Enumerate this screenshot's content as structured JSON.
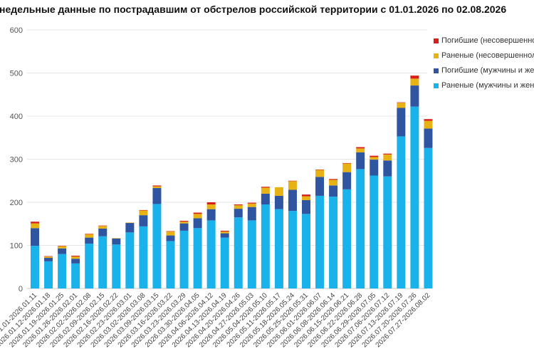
{
  "chart_data": {
    "type": "bar",
    "stacked": true,
    "title": "недельные данные по пострадавшим от обстрелов российской территории с 01.01.2026 по 02.08.2026",
    "xlabel": "",
    "ylabel": "",
    "ylim": [
      0,
      600
    ],
    "yticks": [
      0,
      100,
      200,
      300,
      400,
      500,
      600
    ],
    "grid": true,
    "legend_position": "right",
    "categories": [
      "2026.01.01-2026.01.11",
      "2026.01.12-2026.01.18",
      "2026.01.19-2026.01.25",
      "2026.01.26-2026.02.01",
      "2026.02.02-2026.02.08",
      "2026.02.09-2026.02.15",
      "2026.02.16-2026.02.22",
      "2026.02.23-2026.03.01",
      "2026.03.02-2026.03.08",
      "2026.03.09-2026.03.15",
      "2026.03.16-2026.03.22",
      "2026.03.23-2026.03.29",
      "2026.03.30-2026.04.05",
      "2026.04.06-2026.04.12",
      "2026.04.13-2026.04.19",
      "2026.04.20-2026.04.26",
      "2026.04.27-2026.05.03",
      "2026.05.04-2026.05.10",
      "2026.05.11-2026.05.17",
      "2026.05.18-2026.05.24",
      "2026.05.25-2026.05.31",
      "2026.06.01-2026.06.07",
      "2026.06.08-2026.06.14",
      "2026.06.15-2026.06.21",
      "2026.06.22-2026.06.28",
      "2026.06.29-2026.07.05",
      "2026.07.06-2026.07.12",
      "2026.07.13-2026.07.19",
      "2026.07.20-2026.07.26",
      "2026.07.27-2026.08.02"
    ],
    "series": [
      {
        "name": "Раненые (мужчины и женщины)",
        "color": "#1ab2ea",
        "values": [
          99,
          63,
          80,
          58,
          104,
          121,
          102,
          130,
          144,
          196,
          110,
          134,
          140,
          158,
          118,
          165,
          158,
          195,
          184,
          180,
          173,
          215,
          213,
          230,
          277,
          262,
          260,
          353,
          422,
          326
        ]
      },
      {
        "name": "Погибшие (мужчины и женщины)",
        "color": "#2f55a0",
        "values": [
          41,
          8,
          13,
          11,
          14,
          18,
          14,
          22,
          26,
          37,
          13,
          17,
          23,
          26,
          10,
          20,
          31,
          25,
          31,
          49,
          32,
          44,
          26,
          40,
          39,
          37,
          37,
          66,
          49,
          45
        ]
      },
      {
        "name": "Раненые (несовершеннолетние)",
        "color": "#e7b214",
        "values": [
          11,
          3,
          5,
          5,
          8,
          6,
          1,
          1,
          11,
          4,
          9,
          4,
          10,
          11,
          4,
          8,
          8,
          14,
          20,
          20,
          9,
          16,
          13,
          20,
          9,
          6,
          14,
          12,
          16,
          18
        ]
      },
      {
        "name": "Погибшие (несовершеннолетние)",
        "color": "#d81e16",
        "values": [
          4,
          1,
          1,
          2,
          1,
          1,
          0,
          0,
          1,
          2,
          1,
          2,
          3,
          5,
          2,
          2,
          2,
          2,
          0,
          1,
          4,
          1,
          2,
          1,
          3,
          3,
          2,
          1,
          7,
          4
        ]
      }
    ]
  },
  "legend": {
    "items": [
      {
        "label": "Погибшие (несовершеннолетние)",
        "color": "#d81e16"
      },
      {
        "label": "Раненые (несовершеннолетние)",
        "color": "#e7b214"
      },
      {
        "label": "Погибшие (мужчины и женщины)",
        "color": "#2f55a0"
      },
      {
        "label": "Раненые (мужчины и женщины)",
        "color": "#1ab2ea"
      }
    ]
  }
}
